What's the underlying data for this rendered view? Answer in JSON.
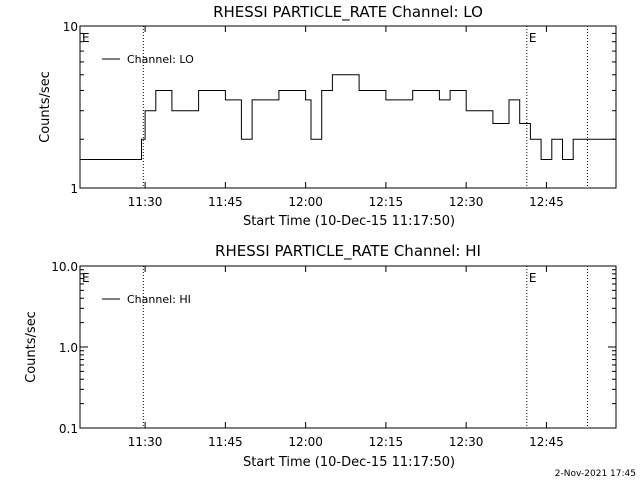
{
  "chart_data": [
    {
      "type": "line",
      "title": "RHESSI PARTICLE_RATE Channel: LO",
      "xlabel": "Start Time (10-Dec-15 11:17:50)",
      "ylabel": "Counts/sec",
      "y_scale": "log",
      "ylim": [
        1,
        10
      ],
      "y_ticks": [
        1,
        10
      ],
      "y_tick_labels": [
        "1",
        "10"
      ],
      "xlim": [
        "11:17:50",
        "12:58:00"
      ],
      "x_ticks": [
        "11:30",
        "11:45",
        "12:00",
        "12:15",
        "12:30",
        "12:45"
      ],
      "x_tick_labels": [
        "11:30",
        "11:45",
        "12:00",
        "12:15",
        "12:30",
        "12:45"
      ],
      "markers": [
        {
          "time": "11:17:50",
          "label": "E",
          "line": false
        },
        {
          "time": "11:29:40",
          "label": "",
          "line": true
        },
        {
          "time": "12:41:20",
          "label": "E",
          "line": true
        },
        {
          "time": "12:52:40",
          "label": "",
          "line": true
        }
      ],
      "legend_position": "top-left",
      "series": [
        {
          "name": "Channel: LO",
          "x": [
            "11:17:50",
            "11:29:20",
            "11:30:00",
            "11:32:00",
            "11:35:00",
            "11:40:00",
            "11:45:00",
            "11:48:00",
            "11:50:00",
            "11:55:00",
            "12:00:00",
            "12:01:00",
            "12:03:00",
            "12:05:00",
            "12:10:00",
            "12:15:00",
            "12:20:00",
            "12:25:00",
            "12:27:00",
            "12:30:00",
            "12:35:00",
            "12:38:00",
            "12:40:00",
            "12:42:00",
            "12:44:00",
            "12:46:00",
            "12:48:00",
            "12:50:00",
            "12:52:00",
            "12:58:00"
          ],
          "values": [
            1.5,
            2,
            3,
            4,
            3,
            4,
            3.5,
            2,
            3.5,
            4,
            3.5,
            2,
            4,
            5,
            4,
            3.5,
            4,
            3.5,
            4,
            3,
            2.5,
            3.5,
            2.5,
            2,
            1.5,
            2,
            1.5,
            2,
            2,
            2
          ]
        }
      ]
    },
    {
      "type": "line",
      "title": "RHESSI PARTICLE_RATE Channel: HI",
      "xlabel": "Start Time (10-Dec-15 11:17:50)",
      "ylabel": "Counts/sec",
      "y_scale": "log",
      "ylim": [
        0.1,
        10
      ],
      "y_ticks": [
        0.1,
        1,
        10
      ],
      "y_tick_labels": [
        "0.1",
        "1.0",
        "10.0"
      ],
      "xlim": [
        "11:17:50",
        "12:58:00"
      ],
      "x_ticks": [
        "11:30",
        "11:45",
        "12:00",
        "12:15",
        "12:30",
        "12:45"
      ],
      "x_tick_labels": [
        "11:30",
        "11:45",
        "12:00",
        "12:15",
        "12:30",
        "12:45"
      ],
      "markers": [
        {
          "time": "11:17:50",
          "label": "E",
          "line": false
        },
        {
          "time": "11:29:40",
          "label": "",
          "line": true
        },
        {
          "time": "12:41:20",
          "label": "E",
          "line": true
        },
        {
          "time": "12:52:40",
          "label": "",
          "line": true
        }
      ],
      "legend_position": "top-left",
      "series": [
        {
          "name": "Channel: HI",
          "x": [],
          "values": []
        }
      ]
    }
  ],
  "footer": {
    "timestamp": "2-Nov-2021 17:45"
  }
}
